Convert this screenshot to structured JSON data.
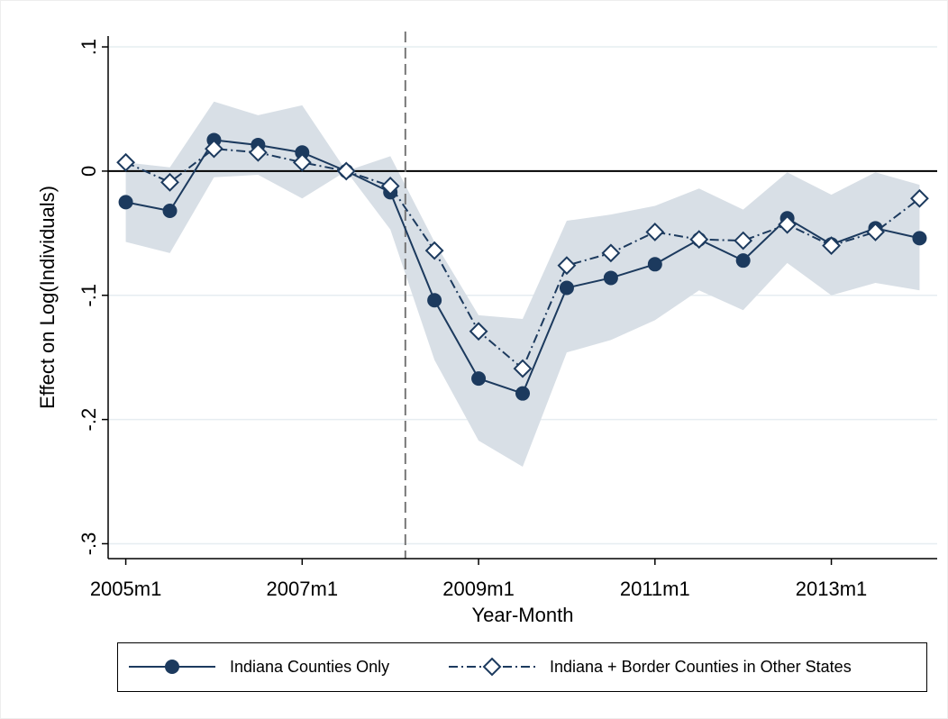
{
  "chart_data": {
    "type": "line",
    "y_label": "Effect on Log(Individuals)",
    "x_label": "Year-Month",
    "x": [
      2005,
      2005.5,
      2006,
      2006.5,
      2007,
      2007.5,
      2008,
      2008.5,
      2009,
      2009.5,
      2010,
      2010.5,
      2011,
      2011.5,
      2012,
      2012.5,
      2013,
      2013.5,
      2014
    ],
    "series": [
      {
        "name": "Indiana Counties Only",
        "color": "#1c3a5e",
        "marker": "circle",
        "dash": "solid",
        "values": [
          -0.025,
          -0.032,
          0.025,
          0.021,
          0.015,
          0,
          -0.017,
          -0.104,
          -0.167,
          -0.179,
          -0.094,
          -0.086,
          -0.075,
          -0.055,
          -0.072,
          -0.038,
          -0.059,
          -0.046,
          -0.054
        ]
      },
      {
        "name": "Indiana + Border Counties in Other States",
        "color": "#1c3a5e",
        "marker": "diamond",
        "dash": "dashdot",
        "values": [
          0.007,
          -0.009,
          0.018,
          0.015,
          0.007,
          0,
          -0.012,
          -0.064,
          -0.129,
          -0.159,
          -0.076,
          -0.066,
          -0.049,
          -0.055,
          -0.056,
          -0.043,
          -0.06,
          -0.049,
          -0.022
        ]
      }
    ],
    "ci_band": {
      "color": "#d8dfe6",
      "upper": [
        0.007,
        0.003,
        0.056,
        0.045,
        0.053,
        0,
        0.012,
        -0.057,
        -0.116,
        -0.119,
        -0.04,
        -0.035,
        -0.028,
        -0.014,
        -0.031,
        -0.001,
        -0.019,
        -0.001,
        -0.011
      ],
      "lower": [
        -0.057,
        -0.066,
        -0.005,
        -0.003,
        -0.022,
        0,
        -0.047,
        -0.152,
        -0.217,
        -0.238,
        -0.146,
        -0.136,
        -0.12,
        -0.096,
        -0.112,
        -0.074,
        -0.1,
        -0.09,
        -0.096
      ]
    },
    "vline": 2008.17,
    "hline": 0,
    "xlim": [
      2004.8,
      2014.2
    ],
    "ylim": [
      -0.312,
      0.116
    ],
    "xticks": [
      {
        "value": 2005,
        "label": "2005m1"
      },
      {
        "value": 2007,
        "label": "2007m1"
      },
      {
        "value": 2009,
        "label": "2009m1"
      },
      {
        "value": 2011,
        "label": "2011m1"
      },
      {
        "value": 2013,
        "label": "2013m1"
      }
    ],
    "yticks": [
      {
        "value": 0.1,
        "label": ".1"
      },
      0,
      {
        "value": -0.1,
        "label": "-.1"
      },
      {
        "value": -0.2,
        "label": "-.2"
      },
      {
        "value": -0.3,
        "label": "-.3"
      }
    ],
    "grid": true,
    "legend": "bottom"
  }
}
